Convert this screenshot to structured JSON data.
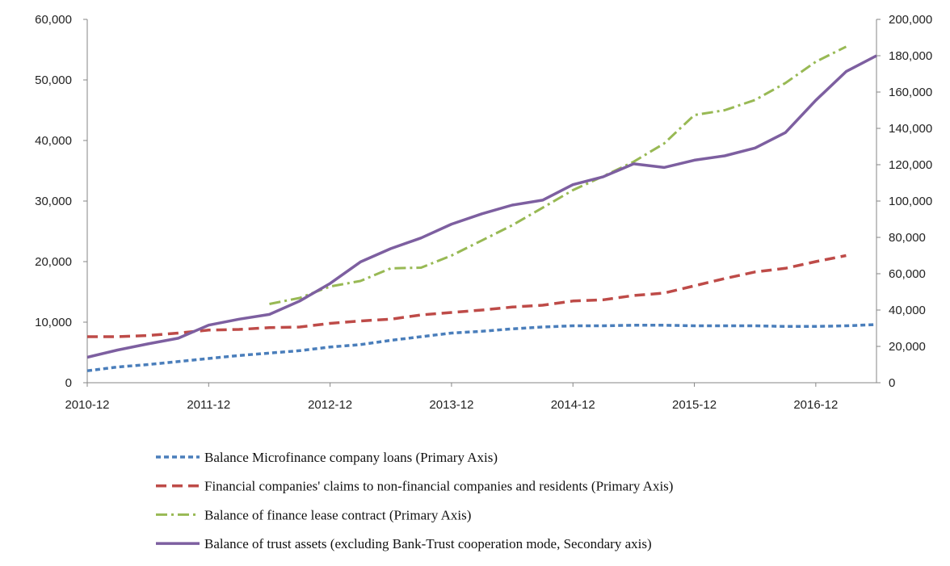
{
  "chart_data": {
    "type": "line",
    "x": [
      "2010-12",
      "2011-03",
      "2011-06",
      "2011-09",
      "2011-12",
      "2012-03",
      "2012-06",
      "2012-09",
      "2012-12",
      "2013-03",
      "2013-06",
      "2013-09",
      "2013-12",
      "2014-03",
      "2014-06",
      "2014-09",
      "2014-12",
      "2015-03",
      "2015-06",
      "2015-09",
      "2015-12",
      "2016-03",
      "2016-06",
      "2016-09",
      "2016-12",
      "2017-03",
      "2017-06"
    ],
    "x_tick_labels": [
      "2010-12",
      "2011-12",
      "2012-12",
      "2013-12",
      "2014-12",
      "2015-12",
      "2016-12"
    ],
    "y_left": {
      "range": [
        0,
        60000
      ],
      "ticks": [
        "0",
        "10,000",
        "20,000",
        "30,000",
        "40,000",
        "50,000",
        "60,000"
      ]
    },
    "y_right": {
      "range": [
        0,
        200000
      ],
      "ticks": [
        "0",
        "20,000",
        "40,000",
        "60,000",
        "80,000",
        "100,000",
        "120,000",
        "140,000",
        "160,000",
        "180,000",
        "200,000"
      ]
    },
    "series": [
      {
        "name": "Balance Microfinance company loans (Primary Axis)",
        "axis": "primary",
        "color": "#4a7ebb",
        "dash": "dash",
        "values": [
          1975,
          2600,
          3000,
          3500,
          4000,
          4500,
          4900,
          5300,
          5900,
          6300,
          7000,
          7600,
          8200,
          8500,
          8900,
          9200,
          9400,
          9400,
          9500,
          9500,
          9400,
          9400,
          9400,
          9300,
          9300,
          9400,
          9600
        ]
      },
      {
        "name": "Financial companies' claims to non-financial companies and residents (Primary Axis)",
        "axis": "primary",
        "color": "#be4b48",
        "dash": "longdash",
        "values": [
          7600,
          7600,
          7800,
          8200,
          8700,
          8800,
          9100,
          9200,
          9800,
          10200,
          10500,
          11200,
          11600,
          12000,
          12500,
          12800,
          13500,
          13700,
          14400,
          14800,
          16000,
          17200,
          18300,
          18900,
          20000,
          21000,
          null
        ]
      },
      {
        "name": "Balance of finance lease contract (Primary Axis)",
        "axis": "primary",
        "color": "#98b954",
        "dash": "dashdot",
        "values": [
          null,
          null,
          null,
          null,
          null,
          null,
          13000,
          14000,
          15900,
          16800,
          18900,
          19000,
          21000,
          23500,
          26000,
          28900,
          31800,
          34100,
          36500,
          39500,
          44200,
          45000,
          46700,
          49500,
          53000,
          55500,
          null
        ]
      },
      {
        "name": "Balance of trust assets (excluding Bank-Trust cooperation mode, Secondary axis)",
        "axis": "secondary",
        "color": "#7d5fa0",
        "dash": "solid",
        "values": [
          14000,
          18000,
          21400,
          24500,
          31700,
          35000,
          37600,
          45000,
          54600,
          66500,
          73800,
          79700,
          87300,
          93000,
          97800,
          100500,
          109000,
          113400,
          120500,
          118500,
          122500,
          124900,
          129200,
          137700,
          155400,
          171300,
          180000
        ]
      }
    ]
  }
}
